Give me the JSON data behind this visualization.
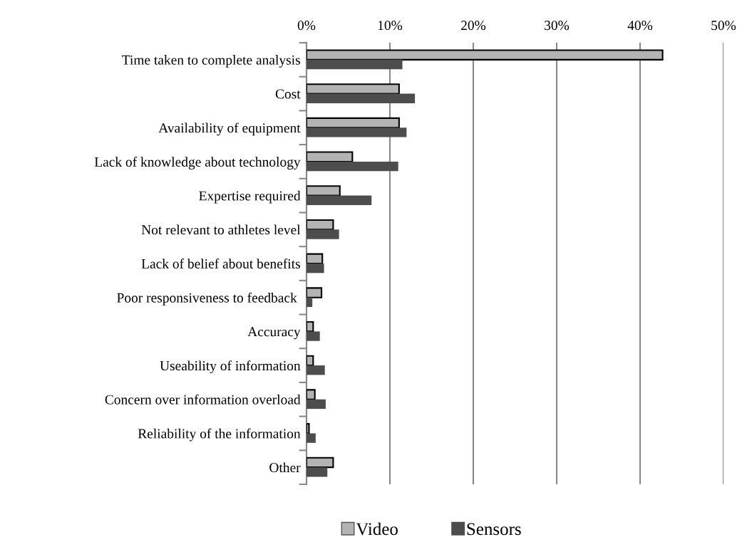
{
  "chart_data": {
    "type": "bar",
    "orientation": "horizontal",
    "categories": [
      "Time taken to complete analysis",
      "Cost",
      "Availability of equipment",
      "Lack of knowledge about technology",
      "Expertise required",
      "Not relevant to athletes level",
      "Lack of belief about benefits",
      "Poor responsiveness to feedback ",
      "Accuracy",
      "Useability of information",
      "Concern over information overload",
      "Reliability of the information",
      "Other"
    ],
    "series": [
      {
        "name": "Video",
        "color": "#b3b3b3",
        "values": [
          42.7,
          11.1,
          11.1,
          5.5,
          4.0,
          3.2,
          1.9,
          1.8,
          0.8,
          0.8,
          1.0,
          0.3,
          3.2
        ]
      },
      {
        "name": "Sensors",
        "color": "#4d4d4d",
        "values": [
          11.5,
          13.0,
          12.0,
          11.0,
          7.8,
          3.9,
          2.1,
          0.7,
          1.6,
          2.2,
          2.3,
          1.1,
          2.5
        ]
      }
    ],
    "xlim": [
      0,
      50
    ],
    "xticks": [
      {
        "value": 0,
        "label": "0%"
      },
      {
        "value": 10,
        "label": "10%"
      },
      {
        "value": 20,
        "label": "20%"
      },
      {
        "value": 30,
        "label": "30%"
      },
      {
        "value": 40,
        "label": "40%"
      },
      {
        "value": 50,
        "label": "50%"
      }
    ],
    "grid": "x",
    "legend": "bottom"
  }
}
